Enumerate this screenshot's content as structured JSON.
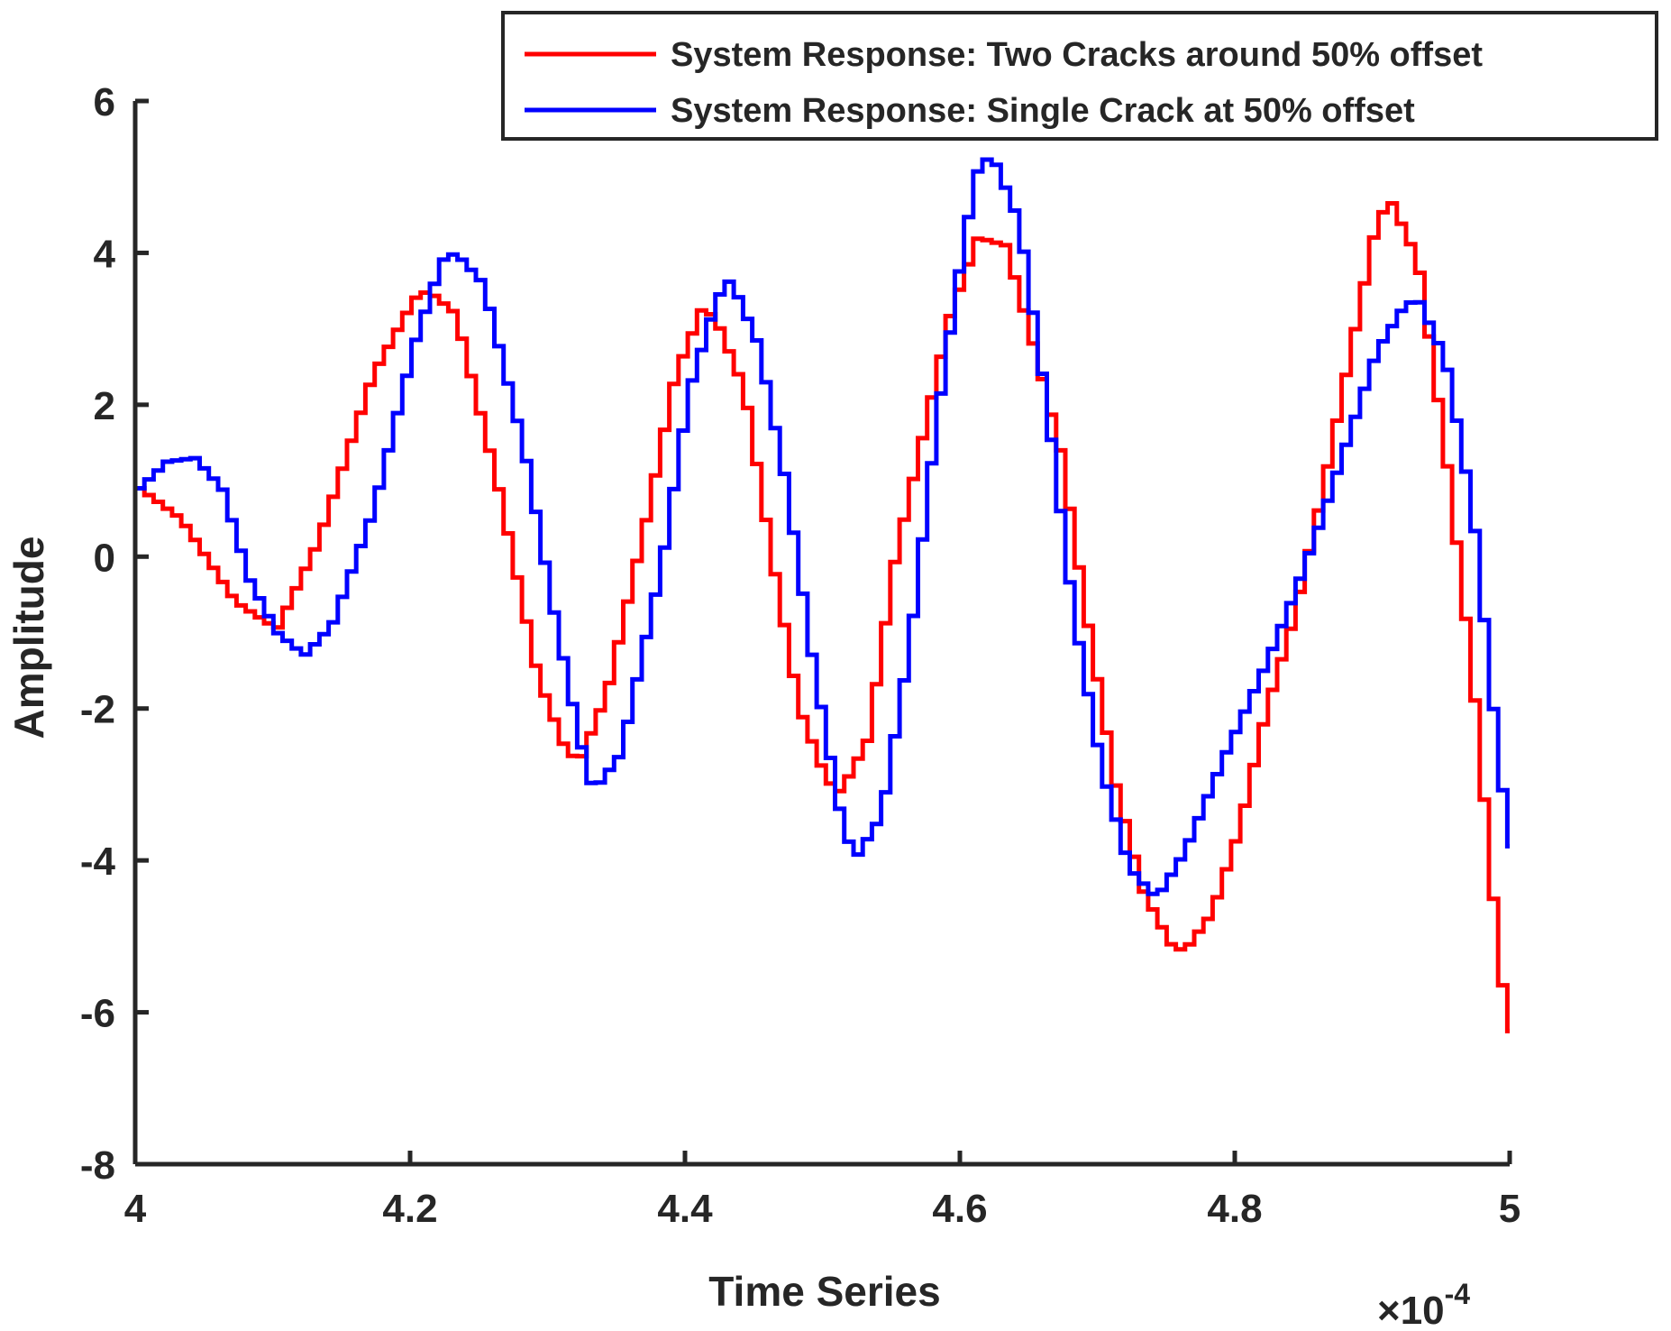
{
  "chart_data": {
    "type": "line",
    "title": "",
    "xlabel": "Time Series",
    "ylabel": "Amplitude",
    "x_exponent_label": "×10",
    "x_exponent_power": "-4",
    "xlim": [
      4,
      5
    ],
    "ylim": [
      -8,
      6
    ],
    "xticks": [
      4,
      4.2,
      4.4,
      4.6,
      4.8,
      5
    ],
    "xtick_labels": [
      "4",
      "4.2",
      "4.4",
      "4.6",
      "4.8",
      "5"
    ],
    "yticks": [
      -8,
      -6,
      -4,
      -2,
      0,
      2,
      4,
      6
    ],
    "ytick_labels": [
      "-8",
      "-6",
      "-4",
      "-2",
      "0",
      "2",
      "4",
      "6"
    ],
    "grid": false,
    "legend_position": "top-right",
    "step_width": 0.0067,
    "series": [
      {
        "name": "System Response: Two Cracks around 50% offset",
        "color": "#ff0000",
        "points": [
          [
            4.0,
            0.9
          ],
          [
            4.03,
            0.5
          ],
          [
            4.07,
            -0.6
          ],
          [
            4.1,
            -0.95
          ],
          [
            4.13,
            0.2
          ],
          [
            4.17,
            2.4
          ],
          [
            4.2,
            3.4
          ],
          [
            4.21,
            3.5
          ],
          [
            4.23,
            3.2
          ],
          [
            4.26,
            1.0
          ],
          [
            4.29,
            -1.6
          ],
          [
            4.31,
            -2.55
          ],
          [
            4.32,
            -2.7
          ],
          [
            4.34,
            -1.8
          ],
          [
            4.37,
            0.6
          ],
          [
            4.39,
            2.4
          ],
          [
            4.41,
            3.3
          ],
          [
            4.42,
            3.1
          ],
          [
            4.44,
            2.2
          ],
          [
            4.46,
            0.0
          ],
          [
            4.48,
            -2.0
          ],
          [
            4.5,
            -2.95
          ],
          [
            4.51,
            -3.1
          ],
          [
            4.53,
            -2.4
          ],
          [
            4.55,
            0.0
          ],
          [
            4.57,
            1.6
          ],
          [
            4.59,
            3.2
          ],
          [
            4.61,
            4.2
          ],
          [
            4.63,
            4.1
          ],
          [
            4.65,
            2.8
          ],
          [
            4.67,
            1.4
          ],
          [
            4.69,
            -0.9
          ],
          [
            4.71,
            -3.0
          ],
          [
            4.73,
            -4.4
          ],
          [
            4.75,
            -5.1
          ],
          [
            4.76,
            -5.2
          ],
          [
            4.78,
            -4.7
          ],
          [
            4.8,
            -3.6
          ],
          [
            4.82,
            -2.0
          ],
          [
            4.84,
            -0.8
          ],
          [
            4.86,
            0.8
          ],
          [
            4.88,
            2.6
          ],
          [
            4.9,
            4.4
          ],
          [
            4.91,
            4.7
          ],
          [
            4.93,
            3.9
          ],
          [
            4.95,
            1.4
          ],
          [
            4.97,
            -1.6
          ],
          [
            4.99,
            -5.5
          ],
          [
            5.0,
            -6.4
          ]
        ]
      },
      {
        "name": "System Response: Single Crack at 50% offset",
        "color": "#0000ff",
        "points": [
          [
            4.0,
            0.9
          ],
          [
            4.02,
            1.25
          ],
          [
            4.04,
            1.3
          ],
          [
            4.06,
            0.9
          ],
          [
            4.08,
            -0.3
          ],
          [
            4.1,
            -1.0
          ],
          [
            4.12,
            -1.3
          ],
          [
            4.14,
            -0.9
          ],
          [
            4.17,
            0.6
          ],
          [
            4.2,
            2.8
          ],
          [
            4.22,
            3.9
          ],
          [
            4.23,
            4.0
          ],
          [
            4.25,
            3.6
          ],
          [
            4.28,
            1.4
          ],
          [
            4.3,
            -0.6
          ],
          [
            4.32,
            -2.4
          ],
          [
            4.33,
            -3.1
          ],
          [
            4.35,
            -2.6
          ],
          [
            4.38,
            -0.1
          ],
          [
            4.4,
            2.2
          ],
          [
            4.42,
            3.4
          ],
          [
            4.43,
            3.65
          ],
          [
            4.45,
            2.8
          ],
          [
            4.47,
            1.0
          ],
          [
            4.49,
            -1.4
          ],
          [
            4.51,
            -3.4
          ],
          [
            4.52,
            -4.0
          ],
          [
            4.54,
            -3.4
          ],
          [
            4.56,
            -1.2
          ],
          [
            4.58,
            1.8
          ],
          [
            4.6,
            4.2
          ],
          [
            4.61,
            5.1
          ],
          [
            4.62,
            5.3
          ],
          [
            4.64,
            4.4
          ],
          [
            4.66,
            2.0
          ],
          [
            4.68,
            -0.8
          ],
          [
            4.7,
            -2.8
          ],
          [
            4.72,
            -4.1
          ],
          [
            4.74,
            -4.5
          ],
          [
            4.76,
            -3.9
          ],
          [
            4.79,
            -2.6
          ],
          [
            4.82,
            -1.4
          ],
          [
            4.84,
            -0.5
          ],
          [
            4.86,
            0.5
          ],
          [
            4.88,
            1.6
          ],
          [
            4.9,
            2.7
          ],
          [
            4.92,
            3.3
          ],
          [
            4.93,
            3.4
          ],
          [
            4.95,
            2.6
          ],
          [
            4.97,
            0.6
          ],
          [
            4.99,
            -2.9
          ],
          [
            5.0,
            -4.0
          ]
        ]
      }
    ]
  }
}
